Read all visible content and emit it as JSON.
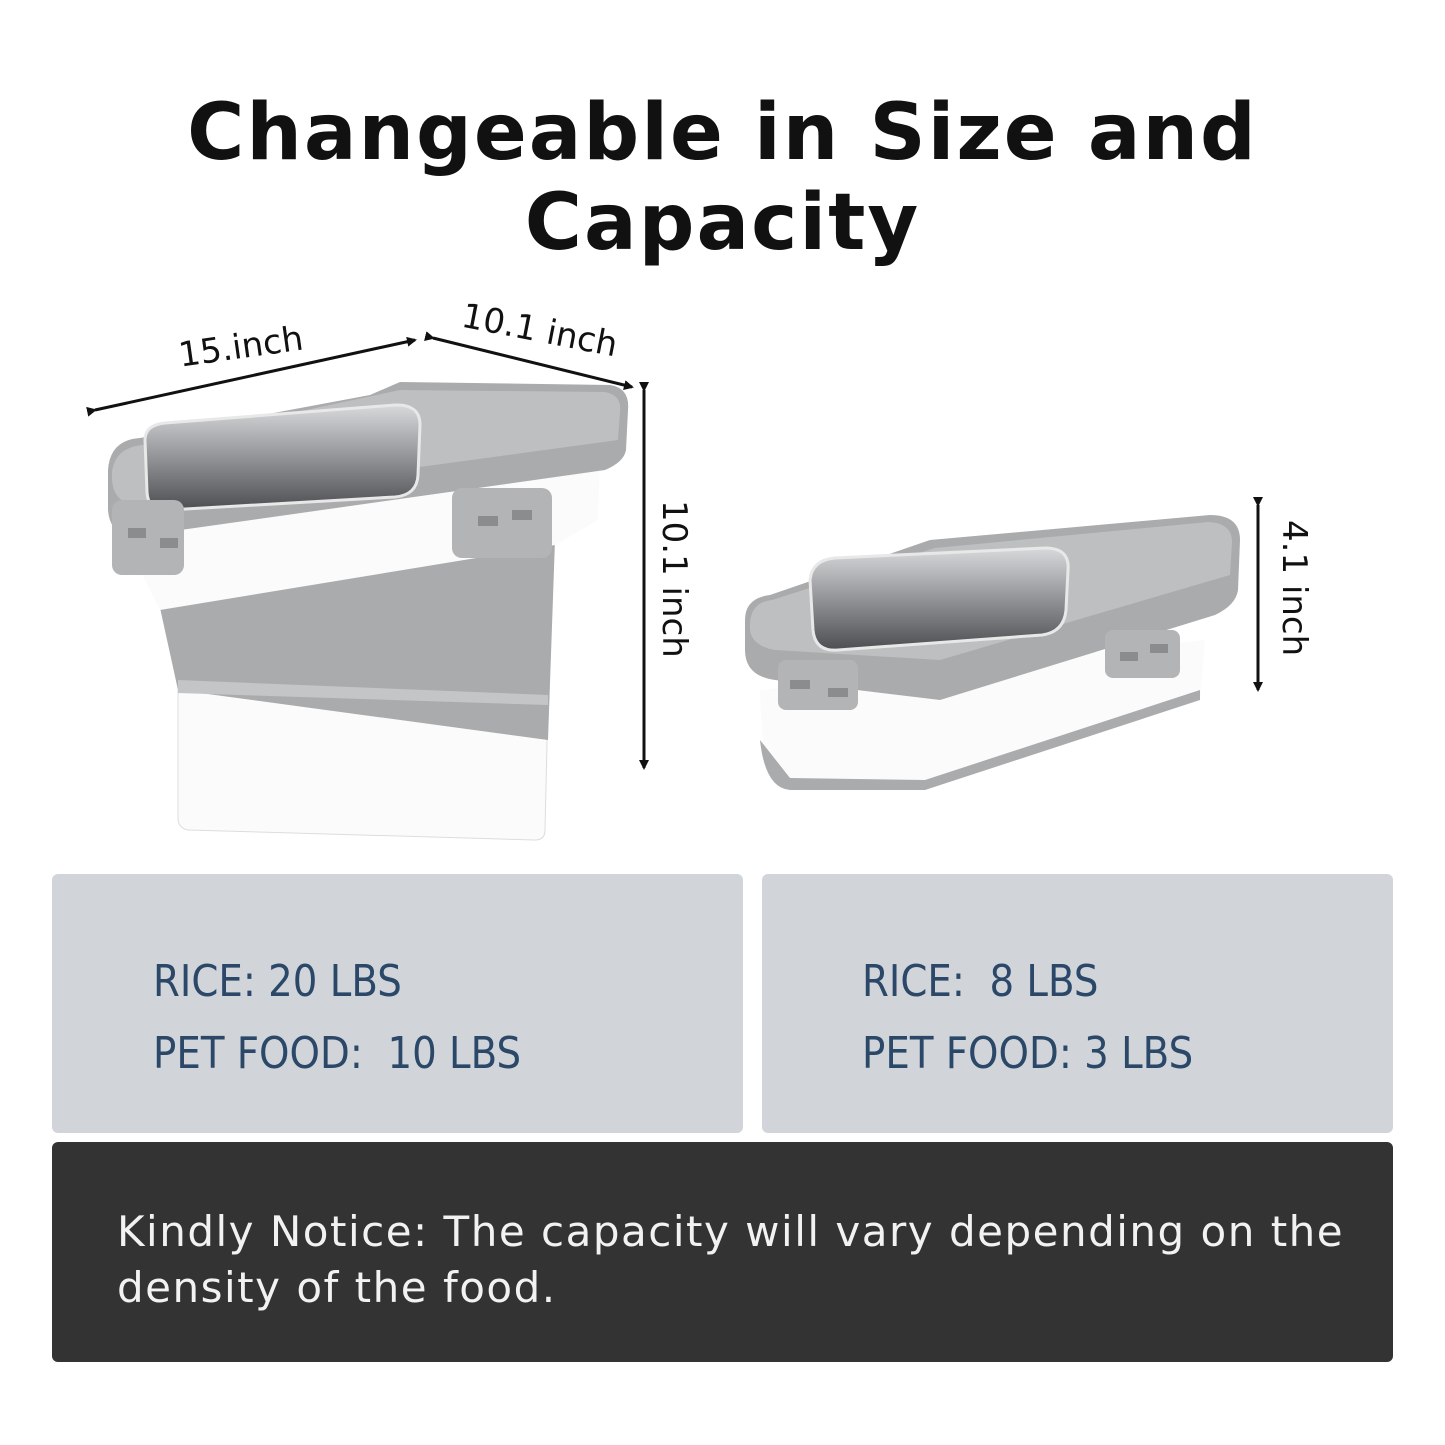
{
  "title": "Changeable in Size and Capacity",
  "dimensions": {
    "large": {
      "length": "15.inch",
      "width": "10.1 inch",
      "height": "10.1 inch"
    },
    "small": {
      "height": "4.1 inch"
    }
  },
  "capacity": {
    "large": {
      "rice": "RICE: 20 LBS",
      "pet_food": "PET FOOD:  10 LBS"
    },
    "small": {
      "rice": "RICE:  8 LBS",
      "pet_food": "PET FOOD: 3 LBS"
    }
  },
  "notice": "Kindly Notice: The capacity will vary depending on the density of the food.",
  "colors": {
    "panel": "#d1d5da",
    "capacity_text": "#2b4868",
    "notice_bg": "#333333",
    "container_gray": "#a9abad"
  }
}
